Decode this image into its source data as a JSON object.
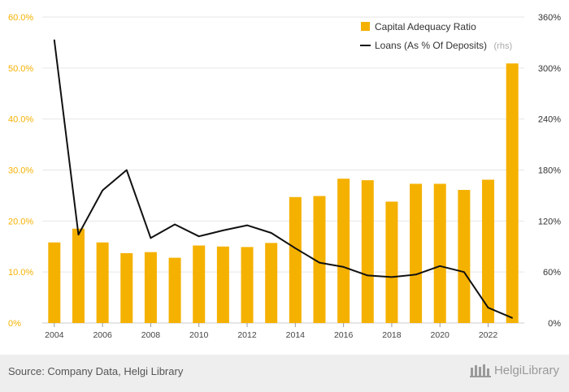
{
  "chart_data": {
    "type": "bar",
    "x": [
      2004,
      2005,
      2006,
      2007,
      2008,
      2009,
      2010,
      2011,
      2012,
      2013,
      2014,
      2015,
      2016,
      2017,
      2018,
      2019,
      2020,
      2021,
      2022,
      2023
    ],
    "series": [
      {
        "name": "Capital Adequacy Ratio",
        "type": "bar",
        "axis": "left",
        "color": "#f5b100",
        "values": [
          15.8,
          18.5,
          15.8,
          13.7,
          13.9,
          12.8,
          15.2,
          15.0,
          14.9,
          15.7,
          24.7,
          24.9,
          28.3,
          28.0,
          23.8,
          27.3,
          27.3,
          26.1,
          28.1,
          50.9
        ]
      },
      {
        "name": "Loans (As % Of Deposits)",
        "type": "line",
        "axis": "right",
        "color": "#111111",
        "values": [
          333,
          104,
          156,
          180,
          100,
          116,
          102,
          109,
          115,
          106,
          88,
          71,
          66,
          56,
          54,
          57,
          67,
          60,
          18,
          6
        ]
      }
    ],
    "xticks": [
      "2004",
      "2006",
      "2008",
      "2010",
      "2012",
      "2014",
      "2016",
      "2018",
      "2020",
      "2022"
    ],
    "y_left": {
      "min": 0,
      "max": 60,
      "ticks": [
        "0%",
        "10.0%",
        "20.0%",
        "30.0%",
        "40.0%",
        "50.0%",
        "60.0%"
      ]
    },
    "y_right": {
      "min": 0,
      "max": 360,
      "ticks": [
        "0%",
        "60%",
        "120%",
        "180%",
        "240%",
        "300%",
        "360%"
      ]
    },
    "grid": true,
    "legend": {
      "placement": "top-right",
      "items": [
        "Capital Adequacy Ratio",
        "Loans (As % Of Deposits)"
      ],
      "rhs_note": "(rhs)"
    }
  },
  "footer": {
    "source": "Source: Company Data, Helgi Library",
    "brand": "HelgiLibrary"
  }
}
